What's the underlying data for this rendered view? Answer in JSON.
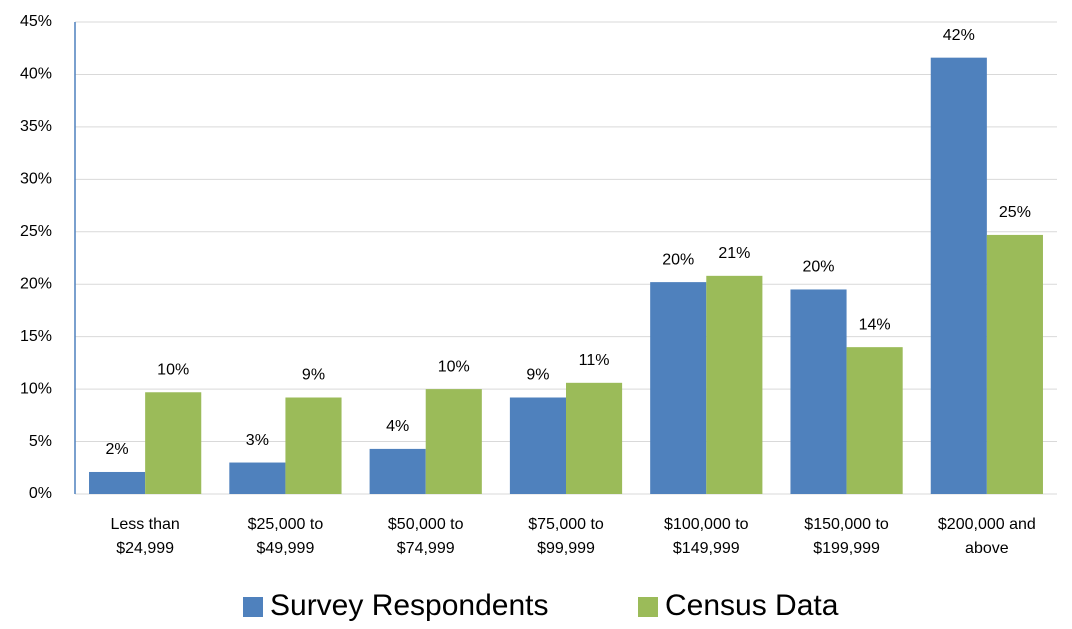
{
  "chart_data": {
    "type": "bar",
    "categories": [
      [
        "Less than",
        "$24,999"
      ],
      [
        "$25,000 to",
        "$49,999"
      ],
      [
        "$50,000 to",
        "$74,999"
      ],
      [
        "$75,000 to",
        "$99,999"
      ],
      [
        "$100,000 to",
        "$149,999"
      ],
      [
        "$150,000 to",
        "$199,999"
      ],
      [
        "$200,000 and",
        "above"
      ]
    ],
    "series": [
      {
        "name": "Survey Respondents",
        "color": "#4f81bd",
        "values": [
          2.1,
          3.0,
          4.3,
          9.2,
          20.2,
          19.5,
          41.6
        ],
        "value_labels": [
          "2%",
          "3%",
          "4%",
          "9%",
          "20%",
          "20%",
          "42%"
        ]
      },
      {
        "name": "Census Data",
        "color": "#9bbb59",
        "values": [
          9.7,
          9.2,
          10.0,
          10.6,
          20.8,
          14.0,
          24.7
        ],
        "value_labels": [
          "10%",
          "9%",
          "10%",
          "11%",
          "21%",
          "14%",
          "25%"
        ]
      }
    ],
    "ylim": [
      0,
      45
    ],
    "yticks": [
      {
        "value": 0,
        "label": "0%"
      },
      {
        "value": 5,
        "label": "5%"
      },
      {
        "value": 10,
        "label": "10%"
      },
      {
        "value": 15,
        "label": "15%"
      },
      {
        "value": 20,
        "label": "20%"
      },
      {
        "value": 25,
        "label": "25%"
      },
      {
        "value": 30,
        "label": "30%"
      },
      {
        "value": 35,
        "label": "35%"
      },
      {
        "value": 40,
        "label": "40%"
      },
      {
        "value": 45,
        "label": "45%"
      }
    ],
    "grid": true,
    "legend": "bottom"
  }
}
